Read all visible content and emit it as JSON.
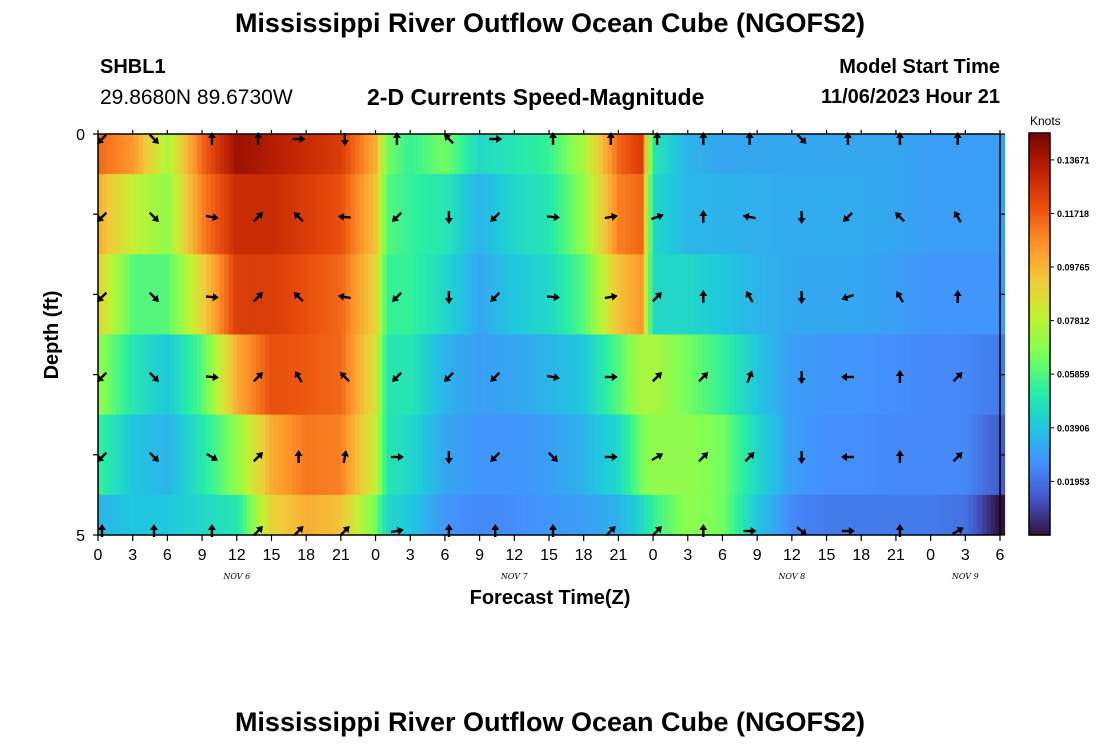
{
  "header": {
    "title": "Mississippi River Outflow Ocean Cube (NGOFS2)",
    "station_id": "SHBL1",
    "station_coords": "29.8680N  89.6730W",
    "subtitle": "2-D Currents Speed-Magnitude",
    "model_start_label": "Model Start Time",
    "model_start_value": "11/06/2023 Hour 21"
  },
  "footer": {
    "title": "Mississippi River Outflow Ocean Cube (NGOFS2)"
  },
  "colors": {
    "arrow": "#000000",
    "frame": "#000000",
    "colormap": [
      "#30123b",
      "#4454c4",
      "#4490fe",
      "#1fc8de",
      "#29efa2",
      "#7eff55",
      "#c3f133",
      "#f1ca3a",
      "#fe922a",
      "#ea4f0d",
      "#be2102",
      "#7a0403"
    ]
  },
  "chart_data": {
    "type": "heatmap",
    "xlabel": "Forecast Time(Z)",
    "ylabel": "Depth (ft)",
    "x_range_hours_from_nov6_00z": [
      0,
      78
    ],
    "y_ticks": [
      "0",
      "5"
    ],
    "ylim": [
      0,
      5
    ],
    "x_tick_labels": [
      "0",
      "3",
      "6",
      "9",
      "12",
      "15",
      "18",
      "21",
      "0",
      "3",
      "6",
      "9",
      "12",
      "15",
      "18",
      "21",
      "0",
      "3",
      "6",
      "9",
      "12",
      "15",
      "18",
      "21",
      "0",
      "3",
      "6"
    ],
    "date_labels": [
      {
        "text": "NOV 6",
        "hour": 12
      },
      {
        "text": "NOV 7",
        "hour": 36
      },
      {
        "text": "NOV 8",
        "hour": 60
      },
      {
        "text": "NOV 9",
        "hour": 75
      }
    ],
    "colorbar": {
      "unit": "Knots",
      "labels": [
        "0.13671",
        "0.11718",
        "0.09765",
        "0.07812",
        "0.05859",
        "0.03906",
        "0.01953"
      ],
      "min": 0.0,
      "max": 0.1465
    },
    "speed_keyframes": {
      "hours": [
        0,
        3,
        6,
        9,
        12,
        15,
        18,
        21,
        24,
        25,
        27,
        30,
        33,
        36,
        39,
        42,
        45,
        47,
        48,
        51,
        54,
        57,
        60,
        63,
        66,
        69,
        72,
        75,
        78
      ],
      "layers": [
        [
          0.115,
          0.105,
          0.075,
          0.115,
          0.14,
          0.135,
          0.13,
          0.125,
          0.1,
          0.065,
          0.055,
          0.065,
          0.045,
          0.05,
          0.055,
          0.075,
          0.115,
          0.125,
          0.05,
          0.035,
          0.032,
          0.032,
          0.032,
          0.032,
          0.032,
          0.032,
          0.03,
          0.03,
          0.03
        ],
        [
          0.1,
          0.08,
          0.07,
          0.11,
          0.13,
          0.13,
          0.125,
          0.12,
          0.095,
          0.06,
          0.055,
          0.05,
          0.035,
          0.045,
          0.05,
          0.07,
          0.11,
          0.115,
          0.045,
          0.036,
          0.035,
          0.034,
          0.033,
          0.033,
          0.033,
          0.032,
          0.03,
          0.03,
          0.03
        ],
        [
          0.09,
          0.06,
          0.06,
          0.09,
          0.125,
          0.125,
          0.12,
          0.115,
          0.09,
          0.055,
          0.055,
          0.045,
          0.032,
          0.04,
          0.045,
          0.06,
          0.095,
          0.105,
          0.045,
          0.045,
          0.04,
          0.035,
          0.033,
          0.032,
          0.032,
          0.03,
          0.028,
          0.028,
          0.028
        ],
        [
          0.07,
          0.05,
          0.04,
          0.06,
          0.1,
          0.12,
          0.118,
          0.115,
          0.085,
          0.05,
          0.05,
          0.035,
          0.03,
          0.032,
          0.035,
          0.04,
          0.06,
          0.075,
          0.075,
          0.065,
          0.055,
          0.04,
          0.03,
          0.028,
          0.028,
          0.026,
          0.025,
          0.025,
          0.022
        ],
        [
          0.055,
          0.04,
          0.035,
          0.05,
          0.07,
          0.1,
          0.112,
          0.11,
          0.08,
          0.05,
          0.045,
          0.032,
          0.028,
          0.028,
          0.03,
          0.035,
          0.045,
          0.065,
          0.07,
          0.07,
          0.065,
          0.045,
          0.03,
          0.026,
          0.026,
          0.025,
          0.025,
          0.025,
          0.015
        ],
        [
          0.035,
          0.04,
          0.04,
          0.045,
          0.05,
          0.09,
          0.1,
          0.095,
          0.065,
          0.045,
          0.04,
          0.028,
          0.025,
          0.026,
          0.028,
          0.03,
          0.035,
          0.045,
          0.055,
          0.07,
          0.065,
          0.04,
          0.025,
          0.022,
          0.022,
          0.022,
          0.022,
          0.02,
          0.0
        ]
      ]
    },
    "arrow_hours": [
      0,
      4.5,
      9.5,
      13.5,
      17,
      21,
      25.5,
      30,
      34,
      39,
      44,
      48,
      52,
      56,
      60.5,
      64.5,
      69,
      74
    ],
    "arrow_directions_deg": [
      [
        225,
        135,
        0,
        0,
        90,
        180,
        0,
        315,
        90,
        0,
        0,
        0,
        0,
        0,
        135,
        0,
        0,
        0
      ],
      [
        225,
        135,
        100,
        45,
        315,
        275,
        225,
        180,
        225,
        95,
        80,
        70,
        0,
        280,
        180,
        225,
        315,
        330
      ],
      [
        225,
        135,
        95,
        45,
        315,
        280,
        225,
        180,
        225,
        95,
        80,
        45,
        0,
        330,
        180,
        250,
        330,
        0
      ],
      [
        225,
        135,
        95,
        45,
        330,
        315,
        225,
        225,
        225,
        100,
        90,
        45,
        45,
        20,
        180,
        270,
        0,
        45
      ],
      [
        225,
        135,
        120,
        45,
        0,
        10,
        90,
        180,
        225,
        135,
        90,
        60,
        45,
        45,
        180,
        270,
        0,
        45
      ],
      [
        0,
        0,
        0,
        45,
        45,
        45,
        80,
        0,
        0,
        0,
        45,
        45,
        0,
        90,
        130,
        90,
        0,
        60
      ]
    ]
  }
}
